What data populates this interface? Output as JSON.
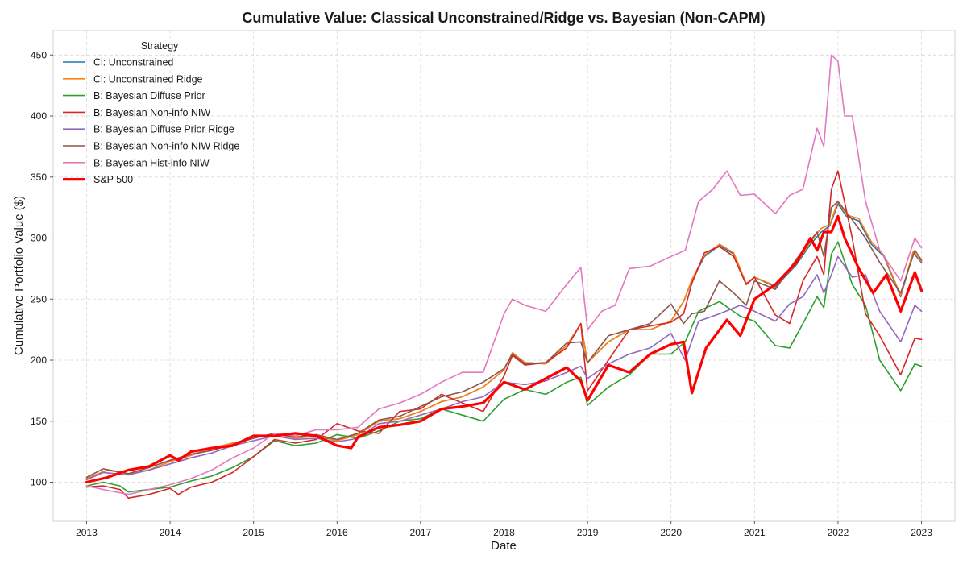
{
  "chart_data": {
    "type": "line",
    "title": "Cumulative Value: Classical Unconstrained/Ridge vs. Bayesian (Non-CAPM)",
    "xlabel": "Date",
    "ylabel": "Cumulative Portfolio Value ($)",
    "xlim": [
      2012.6,
      2023.4
    ],
    "ylim": [
      68,
      470
    ],
    "x_ticks": [
      2013,
      2014,
      2015,
      2016,
      2017,
      2018,
      2019,
      2020,
      2021,
      2022,
      2023
    ],
    "x_tick_labels": [
      "2013",
      "2014",
      "2015",
      "2016",
      "2017",
      "2018",
      "2019",
      "2020",
      "2021",
      "2022",
      "2023"
    ],
    "y_ticks": [
      100,
      150,
      200,
      250,
      300,
      350,
      400,
      450
    ],
    "y_tick_labels": [
      "100",
      "150",
      "200",
      "250",
      "300",
      "350",
      "400",
      "450"
    ],
    "grid": true,
    "legend": {
      "title": "Strategy",
      "position": "upper-left"
    },
    "series": [
      {
        "name": "Cl: Unconstrained",
        "color": "#1f77b4",
        "width": 1.6,
        "x": [
          2013.0,
          2013.25,
          2013.5,
          2013.75,
          2014.0,
          2014.25,
          2014.5,
          2014.75,
          2015.0,
          2015.25,
          2015.5,
          2015.75,
          2016.0,
          2016.25,
          2016.5,
          2016.75,
          2017.0,
          2017.25,
          2017.5,
          2017.75,
          2018.0,
          2018.1,
          2018.25,
          2018.5,
          2018.75,
          2018.92,
          2019.0,
          2019.25,
          2019.5,
          2019.75,
          2020.0,
          2020.15,
          2020.25,
          2020.4,
          2020.58,
          2020.75,
          2020.9,
          2021.0,
          2021.25,
          2021.5,
          2021.67,
          2021.8,
          2021.9,
          2022.0,
          2022.1,
          2022.25,
          2022.4,
          2022.55,
          2022.75,
          2022.9,
          2023.0
        ],
        "y": [
          103,
          110,
          107,
          110,
          117,
          122,
          128,
          132,
          136,
          140,
          136,
          138,
          134,
          139,
          150,
          152,
          158,
          166,
          170,
          178,
          192,
          206,
          198,
          197,
          212,
          230,
          198,
          215,
          225,
          225,
          232,
          248,
          265,
          285,
          294,
          287,
          262,
          268,
          260,
          278,
          295,
          305,
          310,
          328,
          318,
          314,
          295,
          285,
          252,
          288,
          280
        ]
      },
      {
        "name": "Cl: Unconstrained Ridge",
        "color": "#ff7f0e",
        "width": 1.6,
        "x": [
          2013.0,
          2013.25,
          2013.5,
          2013.75,
          2014.0,
          2014.25,
          2014.5,
          2014.75,
          2015.0,
          2015.25,
          2015.5,
          2015.75,
          2016.0,
          2016.25,
          2016.5,
          2016.75,
          2017.0,
          2017.25,
          2017.5,
          2017.75,
          2018.0,
          2018.1,
          2018.25,
          2018.5,
          2018.75,
          2018.92,
          2019.0,
          2019.25,
          2019.5,
          2019.75,
          2020.0,
          2020.15,
          2020.25,
          2020.4,
          2020.58,
          2020.75,
          2020.9,
          2021.0,
          2021.25,
          2021.5,
          2021.67,
          2021.8,
          2021.9,
          2022.0,
          2022.1,
          2022.25,
          2022.4,
          2022.55,
          2022.75,
          2022.9,
          2023.0
        ],
        "y": [
          103,
          110,
          107,
          110,
          117,
          122,
          128,
          132,
          136,
          140,
          136,
          138,
          134,
          139,
          150,
          152,
          158,
          166,
          170,
          178,
          192,
          206,
          198,
          197,
          212,
          230,
          198,
          215,
          225,
          225,
          232,
          248,
          266,
          286,
          295,
          288,
          263,
          268,
          261,
          279,
          297,
          308,
          311,
          330,
          319,
          316,
          297,
          286,
          253,
          289,
          281
        ]
      },
      {
        "name": "B: Bayesian Diffuse Prior",
        "color": "#2ca02c",
        "width": 1.6,
        "x": [
          2013.0,
          2013.2,
          2013.4,
          2013.5,
          2013.75,
          2014.0,
          2014.25,
          2014.5,
          2014.75,
          2015.0,
          2015.25,
          2015.5,
          2015.75,
          2016.0,
          2016.25,
          2016.5,
          2016.75,
          2017.0,
          2017.25,
          2017.5,
          2017.75,
          2018.0,
          2018.25,
          2018.5,
          2018.75,
          2018.92,
          2019.0,
          2019.25,
          2019.5,
          2019.75,
          2020.0,
          2020.17,
          2020.33,
          2020.58,
          2020.83,
          2021.0,
          2021.25,
          2021.42,
          2021.58,
          2021.75,
          2021.83,
          2021.92,
          2022.0,
          2022.17,
          2022.33,
          2022.5,
          2022.75,
          2022.92,
          2023.0
        ],
        "y": [
          97,
          100,
          97,
          92,
          94,
          96,
          101,
          105,
          112,
          121,
          134,
          130,
          132,
          139,
          136,
          142,
          150,
          152,
          160,
          155,
          150,
          168,
          176,
          172,
          182,
          186,
          163,
          178,
          188,
          205,
          205,
          215,
          240,
          248,
          236,
          232,
          212,
          210,
          230,
          252,
          243,
          287,
          297,
          262,
          245,
          200,
          175,
          197,
          195
        ]
      },
      {
        "name": "B: Bayesian Non-info NIW",
        "color": "#d62728",
        "width": 1.6,
        "x": [
          2013.0,
          2013.2,
          2013.4,
          2013.5,
          2013.75,
          2014.0,
          2014.1,
          2014.25,
          2014.5,
          2014.75,
          2015.0,
          2015.25,
          2015.5,
          2015.75,
          2016.0,
          2016.25,
          2016.5,
          2016.75,
          2017.0,
          2017.25,
          2017.5,
          2017.75,
          2018.0,
          2018.1,
          2018.25,
          2018.5,
          2018.75,
          2018.92,
          2019.0,
          2019.25,
          2019.5,
          2019.75,
          2020.0,
          2020.15,
          2020.25,
          2020.4,
          2020.58,
          2020.75,
          2020.9,
          2021.0,
          2021.25,
          2021.42,
          2021.58,
          2021.75,
          2021.83,
          2021.92,
          2022.0,
          2022.17,
          2022.33,
          2022.5,
          2022.75,
          2022.92,
          2023.0
        ],
        "y": [
          96,
          97,
          94,
          87,
          90,
          95,
          90,
          96,
          100,
          108,
          121,
          135,
          132,
          135,
          148,
          142,
          140,
          158,
          160,
          172,
          165,
          158,
          187,
          204,
          196,
          198,
          210,
          230,
          175,
          200,
          225,
          228,
          231,
          238,
          263,
          288,
          293,
          285,
          262,
          268,
          237,
          230,
          265,
          285,
          270,
          340,
          355,
          300,
          238,
          220,
          188,
          218,
          217
        ]
      },
      {
        "name": "B: Bayesian Diffuse Prior Ridge",
        "color": "#9467bd",
        "width": 1.6,
        "x": [
          2013.0,
          2013.2,
          2013.5,
          2013.75,
          2014.0,
          2014.25,
          2014.5,
          2014.75,
          2015.0,
          2015.25,
          2015.5,
          2015.75,
          2016.0,
          2016.25,
          2016.5,
          2016.75,
          2017.0,
          2017.25,
          2017.5,
          2017.75,
          2018.0,
          2018.25,
          2018.5,
          2018.75,
          2018.92,
          2019.0,
          2019.25,
          2019.5,
          2019.75,
          2020.0,
          2020.17,
          2020.33,
          2020.58,
          2020.83,
          2021.0,
          2021.25,
          2021.42,
          2021.58,
          2021.75,
          2021.83,
          2021.92,
          2022.0,
          2022.17,
          2022.33,
          2022.5,
          2022.75,
          2022.92,
          2023.0
        ],
        "y": [
          102,
          108,
          106,
          110,
          115,
          120,
          124,
          130,
          134,
          138,
          135,
          136,
          133,
          136,
          148,
          150,
          155,
          160,
          166,
          170,
          182,
          180,
          183,
          190,
          195,
          185,
          197,
          205,
          210,
          222,
          200,
          232,
          238,
          245,
          240,
          232,
          246,
          252,
          270,
          255,
          270,
          285,
          268,
          270,
          240,
          215,
          245,
          240
        ]
      },
      {
        "name": "B: Bayesian Non-info NIW Ridge",
        "color": "#8c564b",
        "width": 1.6,
        "x": [
          2013.0,
          2013.2,
          2013.5,
          2013.75,
          2014.0,
          2014.25,
          2014.5,
          2014.75,
          2015.0,
          2015.25,
          2015.5,
          2015.75,
          2016.0,
          2016.25,
          2016.5,
          2016.75,
          2017.0,
          2017.25,
          2017.5,
          2017.75,
          2018.0,
          2018.1,
          2018.25,
          2018.5,
          2018.75,
          2018.92,
          2019.0,
          2019.25,
          2019.5,
          2019.75,
          2020.0,
          2020.15,
          2020.25,
          2020.4,
          2020.58,
          2020.75,
          2020.9,
          2021.0,
          2021.25,
          2021.42,
          2021.58,
          2021.75,
          2021.83,
          2021.92,
          2022.0,
          2022.17,
          2022.33,
          2022.5,
          2022.75,
          2022.92,
          2023.0
        ],
        "y": [
          104,
          111,
          107,
          112,
          118,
          123,
          126,
          131,
          136,
          140,
          137,
          139,
          135,
          140,
          151,
          154,
          162,
          170,
          174,
          182,
          193,
          205,
          197,
          198,
          214,
          215,
          198,
          220,
          225,
          230,
          246,
          230,
          238,
          240,
          265,
          255,
          245,
          265,
          258,
          275,
          290,
          305,
          285,
          325,
          330,
          315,
          300,
          280,
          255,
          290,
          282
        ]
      },
      {
        "name": "B: Bayesian Hist-info NIW",
        "color": "#e377c2",
        "width": 1.6,
        "x": [
          2013.0,
          2013.2,
          2013.5,
          2013.75,
          2014.0,
          2014.25,
          2014.5,
          2014.75,
          2015.0,
          2015.25,
          2015.5,
          2015.75,
          2016.0,
          2016.25,
          2016.5,
          2016.75,
          2017.0,
          2017.25,
          2017.5,
          2017.75,
          2018.0,
          2018.1,
          2018.25,
          2018.5,
          2018.75,
          2018.92,
          2019.0,
          2019.17,
          2019.33,
          2019.5,
          2019.75,
          2020.0,
          2020.17,
          2020.33,
          2020.5,
          2020.67,
          2020.83,
          2021.0,
          2021.25,
          2021.42,
          2021.58,
          2021.75,
          2021.83,
          2021.92,
          2022.0,
          2022.08,
          2022.17,
          2022.33,
          2022.5,
          2022.75,
          2022.92,
          2023.0
        ],
        "y": [
          97,
          94,
          90,
          94,
          98,
          103,
          110,
          120,
          128,
          140,
          138,
          143,
          143,
          145,
          160,
          165,
          172,
          182,
          190,
          190,
          238,
          250,
          245,
          240,
          262,
          276,
          225,
          240,
          245,
          275,
          277,
          285,
          290,
          330,
          340,
          355,
          335,
          336,
          320,
          335,
          340,
          390,
          375,
          450,
          445,
          400,
          400,
          330,
          290,
          265,
          300,
          292
        ]
      },
      {
        "name": "S&P 500",
        "color": "#ff0000",
        "width": 3.2,
        "x": [
          2013.0,
          2013.25,
          2013.5,
          2013.75,
          2014.0,
          2014.1,
          2014.25,
          2014.5,
          2014.75,
          2015.0,
          2015.25,
          2015.5,
          2015.75,
          2016.0,
          2016.17,
          2016.25,
          2016.5,
          2016.75,
          2017.0,
          2017.25,
          2017.5,
          2017.75,
          2018.0,
          2018.25,
          2018.5,
          2018.75,
          2018.92,
          2019.0,
          2019.25,
          2019.5,
          2019.75,
          2020.0,
          2020.15,
          2020.25,
          2020.42,
          2020.67,
          2020.83,
          2021.0,
          2021.25,
          2021.5,
          2021.67,
          2021.75,
          2021.83,
          2021.92,
          2022.0,
          2022.08,
          2022.25,
          2022.42,
          2022.58,
          2022.75,
          2022.92,
          2023.0
        ],
        "y": [
          100,
          104,
          110,
          113,
          122,
          118,
          125,
          128,
          130,
          138,
          138,
          140,
          138,
          130,
          128,
          137,
          145,
          147,
          150,
          160,
          162,
          165,
          182,
          176,
          185,
          194,
          183,
          167,
          196,
          190,
          205,
          213,
          215,
          173,
          210,
          233,
          220,
          250,
          262,
          280,
          300,
          290,
          305,
          305,
          318,
          300,
          275,
          255,
          270,
          240,
          272,
          257
        ]
      }
    ]
  }
}
